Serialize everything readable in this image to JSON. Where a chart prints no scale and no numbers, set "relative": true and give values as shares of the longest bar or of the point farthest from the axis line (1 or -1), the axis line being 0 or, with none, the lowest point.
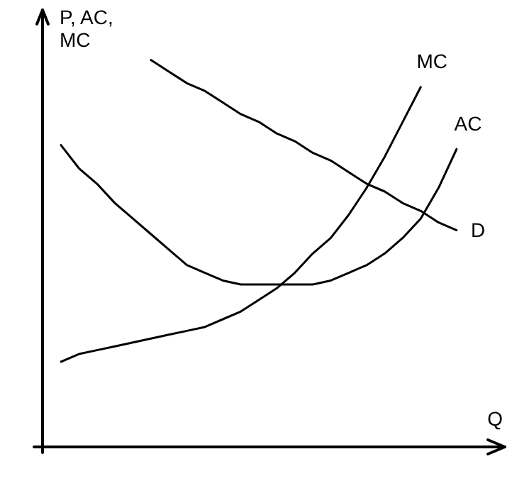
{
  "chart_data": {
    "type": "line",
    "relative": true,
    "xlabel": "Q",
    "ylabel": "P, AC, MC",
    "legend": false,
    "marker": "none",
    "line_style": "solid",
    "categories": [
      null,
      null,
      null,
      null,
      null,
      null,
      null,
      null,
      null,
      null,
      null,
      null,
      null,
      null,
      null,
      null,
      null,
      null,
      null,
      null,
      null,
      null,
      null
    ],
    "series": [
      {
        "name": "MC",
        "color": "#000000",
        "values": [
          0.22,
          0.24,
          0.25,
          0.26,
          0.27,
          0.28,
          0.29,
          0.3,
          0.31,
          0.33,
          0.35,
          0.38,
          0.41,
          0.45,
          0.5,
          0.54,
          0.6,
          0.67,
          0.75,
          0.84,
          0.93,
          null,
          null
        ]
      },
      {
        "name": "AC",
        "color": "#000000",
        "values": [
          0.78,
          0.72,
          0.68,
          0.63,
          0.59,
          0.55,
          0.51,
          0.47,
          0.45,
          0.43,
          0.42,
          0.42,
          0.42,
          0.42,
          0.42,
          0.43,
          0.45,
          0.47,
          0.5,
          0.54,
          0.59,
          0.67,
          0.77
        ]
      },
      {
        "name": "D",
        "color": "#000000",
        "values": [
          null,
          null,
          null,
          null,
          null,
          1,
          0.97,
          0.94,
          0.92,
          0.89,
          0.86,
          0.84,
          0.81,
          0.79,
          0.76,
          0.74,
          0.71,
          0.68,
          0.66,
          0.63,
          0.61,
          0.58,
          0.56
        ]
      }
    ]
  }
}
